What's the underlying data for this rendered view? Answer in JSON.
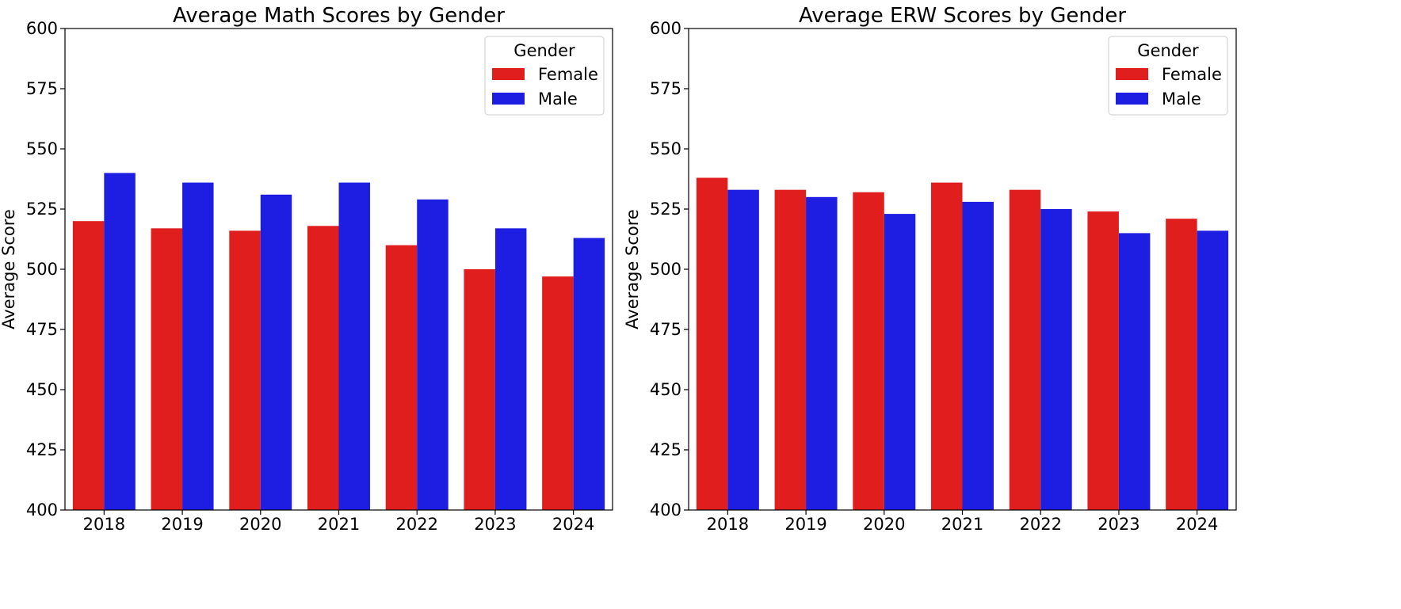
{
  "chart_data": [
    {
      "type": "bar",
      "title": "Average Math Scores by Gender",
      "xlabel": "",
      "ylabel": "Average Score",
      "ylim": [
        400,
        600
      ],
      "yticks": [
        "400",
        "425",
        "450",
        "475",
        "500",
        "525",
        "550",
        "575",
        "600"
      ],
      "categories": [
        "2018",
        "2019",
        "2020",
        "2021",
        "2022",
        "2023",
        "2024"
      ],
      "legend": {
        "title": "Gender",
        "position": "top-right"
      },
      "grid": false,
      "series": [
        {
          "name": "Female",
          "color": "#e01e1e",
          "values": [
            520,
            517,
            516,
            518,
            510,
            500,
            497
          ]
        },
        {
          "name": "Male",
          "color": "#1e1ee2",
          "values": [
            540,
            536,
            531,
            536,
            529,
            517,
            513
          ]
        }
      ]
    },
    {
      "type": "bar",
      "title": "Average ERW Scores by Gender",
      "xlabel": "",
      "ylabel": "Average Score",
      "ylim": [
        400,
        600
      ],
      "yticks": [
        "400",
        "425",
        "450",
        "475",
        "500",
        "525",
        "550",
        "575",
        "600"
      ],
      "categories": [
        "2018",
        "2019",
        "2020",
        "2021",
        "2022",
        "2023",
        "2024"
      ],
      "legend": {
        "title": "Gender",
        "position": "top-right"
      },
      "grid": false,
      "series": [
        {
          "name": "Female",
          "color": "#e01e1e",
          "values": [
            538,
            533,
            532,
            536,
            533,
            524,
            521
          ]
        },
        {
          "name": "Male",
          "color": "#1e1ee2",
          "values": [
            533,
            530,
            523,
            528,
            525,
            515,
            516
          ]
        }
      ]
    }
  ]
}
